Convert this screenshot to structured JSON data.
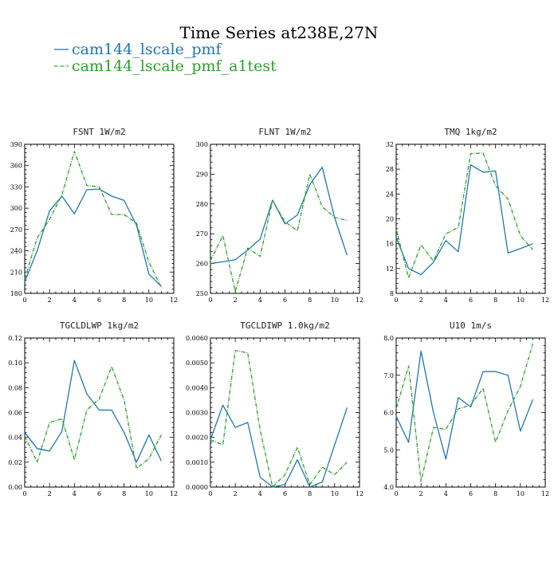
{
  "figure": {
    "title": "Time Series at238E,27N",
    "legend": [
      {
        "name": "cam144_lscale_pmf",
        "color": "#1f77b4",
        "dash": "solid"
      },
      {
        "name": "cam144_lscale_pmf_a1test",
        "color": "#2ca02c",
        "dash": "dashdot"
      }
    ]
  },
  "chart_data": [
    {
      "type": "line",
      "title": "FSNT   1W/m2",
      "xlim": [
        0,
        12
      ],
      "ylim": [
        180,
        390
      ],
      "xticks": [
        0,
        2,
        4,
        6,
        8,
        10,
        12
      ],
      "xtick_labels": [
        "0",
        "2",
        "4",
        "6",
        "8",
        "10",
        "12"
      ],
      "yticks": [
        180,
        210,
        240,
        270,
        300,
        330,
        360,
        390
      ],
      "ytick_labels": [
        "180",
        "210",
        "240",
        "270",
        "300",
        "330",
        "360",
        "390"
      ],
      "x": [
        0,
        1,
        2,
        3,
        4,
        5,
        6,
        7,
        8,
        9,
        10,
        11
      ],
      "series": [
        {
          "name": "cam144_lscale_pmf",
          "values": [
            196,
            240,
            296,
            317,
            292,
            326,
            327,
            317,
            311,
            276,
            207,
            190
          ]
        },
        {
          "name": "cam144_lscale_pmf_a1test",
          "values": [
            200,
            258,
            284,
            319,
            380,
            332,
            330,
            291,
            291,
            279,
            224,
            188
          ]
        }
      ]
    },
    {
      "type": "line",
      "title": "FLNT   1W/m2",
      "xlim": [
        0,
        12
      ],
      "ylim": [
        250,
        300
      ],
      "xticks": [
        0,
        2,
        4,
        6,
        8,
        10,
        12
      ],
      "xtick_labels": [
        "0",
        "2",
        "4",
        "6",
        "8",
        "10",
        "12"
      ],
      "yticks": [
        250,
        260,
        270,
        280,
        290,
        300
      ],
      "ytick_labels": [
        "250",
        "260",
        "270",
        "280",
        "290",
        "300"
      ],
      "x": [
        0,
        1,
        2,
        3,
        4,
        5,
        6,
        7,
        8,
        9,
        10,
        11
      ],
      "series": [
        {
          "name": "cam144_lscale_pmf",
          "values": [
            260,
            260.6,
            261.3,
            264.5,
            268.2,
            281.3,
            273.3,
            276.3,
            286.5,
            292.3,
            275.3,
            262.8
          ]
        },
        {
          "name": "cam144_lscale_pmf_a1test",
          "values": [
            261,
            269.4,
            250.6,
            265.2,
            262.4,
            281.2,
            274,
            271,
            290,
            279,
            275.5,
            274.4
          ]
        }
      ]
    },
    {
      "type": "line",
      "title": "TMQ   1kg/m2",
      "xlim": [
        0,
        12
      ],
      "ylim": [
        8,
        32
      ],
      "xticks": [
        0,
        2,
        4,
        6,
        8,
        10,
        12
      ],
      "xtick_labels": [
        "0",
        "2",
        "4",
        "6",
        "8",
        "10",
        "12"
      ],
      "yticks": [
        8,
        12,
        16,
        20,
        24,
        28,
        32
      ],
      "ytick_labels": [
        "8",
        "12",
        "16",
        "20",
        "24",
        "28",
        "32"
      ],
      "x": [
        0,
        1,
        2,
        3,
        4,
        5,
        6,
        7,
        8,
        9,
        10,
        11
      ],
      "series": [
        {
          "name": "cam144_lscale_pmf",
          "values": [
            17,
            12,
            11,
            13,
            16.5,
            14.7,
            28.7,
            27.5,
            27.7,
            14.5,
            15.2,
            16
          ]
        },
        {
          "name": "cam144_lscale_pmf_a1test",
          "values": [
            18.3,
            10.5,
            15.8,
            13.2,
            17.6,
            18.6,
            30.5,
            30.6,
            25.3,
            23.2,
            17.3,
            15
          ]
        }
      ]
    },
    {
      "type": "line",
      "title": "TGCLDLWP   1kg/m2",
      "xlim": [
        0,
        12
      ],
      "ylim": [
        0,
        0.12
      ],
      "xticks": [
        0,
        2,
        4,
        6,
        8,
        10,
        12
      ],
      "xtick_labels": [
        "0",
        "2",
        "4",
        "6",
        "8",
        "10",
        "12"
      ],
      "yticks": [
        0,
        0.02,
        0.04,
        0.06,
        0.08,
        0.1,
        0.12
      ],
      "ytick_labels": [
        "0.00",
        "0.02",
        "0.04",
        "0.06",
        "0.08",
        "0.10",
        "0.12"
      ],
      "x": [
        0,
        1,
        2,
        3,
        4,
        5,
        6,
        7,
        8,
        9,
        10,
        11
      ],
      "series": [
        {
          "name": "cam144_lscale_pmf",
          "values": [
            0.044,
            0.031,
            0.029,
            0.045,
            0.102,
            0.075,
            0.062,
            0.062,
            0.044,
            0.02,
            0.042,
            0.021
          ]
        },
        {
          "name": "cam144_lscale_pmf_a1test",
          "values": [
            0.041,
            0.02,
            0.052,
            0.055,
            0.022,
            0.062,
            0.071,
            0.097,
            0.07,
            0.015,
            0.023,
            0.042
          ]
        }
      ]
    },
    {
      "type": "line",
      "title": "TGCLDIWP   1.0kg/m2",
      "xlim": [
        0,
        12
      ],
      "ylim": [
        0,
        0.006
      ],
      "xticks": [
        0,
        2,
        4,
        6,
        8,
        10,
        12
      ],
      "xtick_labels": [
        "0",
        "2",
        "4",
        "6",
        "8",
        "10",
        "12"
      ],
      "yticks": [
        0,
        0.001,
        0.002,
        0.003,
        0.004,
        0.005,
        0.006
      ],
      "ytick_labels": [
        "0.0000",
        "0.0010",
        "0.0020",
        "0.0030",
        "0.0040",
        "0.0050",
        "0.0060"
      ],
      "x": [
        0,
        1,
        2,
        3,
        4,
        5,
        6,
        7,
        8,
        9,
        10,
        11
      ],
      "series": [
        {
          "name": "cam144_lscale_pmf",
          "values": [
            0.0019,
            0.0033,
            0.0024,
            0.0026,
            0.0004,
            0.0,
            0.0001,
            0.0011,
            0.0,
            0.0002,
            0.0017,
            0.0032
          ]
        },
        {
          "name": "cam144_lscale_pmf_a1test",
          "values": [
            0.0019,
            0.0017,
            0.0055,
            0.0054,
            0.0023,
            0.0,
            0.0005,
            0.0016,
            0.0001,
            0.0008,
            0.0005,
            0.001
          ]
        }
      ]
    },
    {
      "type": "line",
      "title": "U10   1m/s",
      "xlim": [
        0,
        12
      ],
      "ylim": [
        4,
        8
      ],
      "xticks": [
        0,
        2,
        4,
        6,
        8,
        10,
        12
      ],
      "xtick_labels": [
        "0",
        "2",
        "4",
        "6",
        "8",
        "10",
        "12"
      ],
      "yticks": [
        4,
        5,
        6,
        7,
        8
      ],
      "ytick_labels": [
        "4.0",
        "5.0",
        "6.0",
        "7.0",
        "8.0"
      ],
      "x": [
        0,
        1,
        2,
        3,
        4,
        5,
        6,
        7,
        8,
        9,
        10,
        11
      ],
      "series": [
        {
          "name": "cam144_lscale_pmf",
          "values": [
            5.9,
            5.2,
            7.65,
            6,
            4.75,
            6.4,
            6.15,
            7.1,
            7.1,
            7,
            5.5,
            6.35
          ]
        },
        {
          "name": "cam144_lscale_pmf_a1test",
          "values": [
            6.1,
            7.25,
            4.15,
            5.6,
            5.55,
            6.1,
            6.2,
            6.65,
            5.2,
            6.05,
            6.7,
            7.85
          ]
        }
      ]
    }
  ]
}
